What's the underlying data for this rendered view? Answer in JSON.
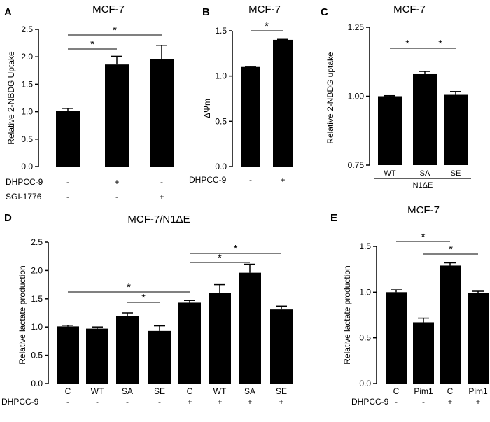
{
  "chart_data": [
    {
      "panel_label": "A",
      "type": "bar",
      "title": "MCF-7",
      "ylabel": "Relative 2-NBDG Uptake",
      "ylim": [
        0,
        2.5
      ],
      "yticks": [
        "0.0",
        "0.5",
        "1.0",
        "1.5",
        "2.0",
        "2.5"
      ],
      "values": [
        1.01,
        1.86,
        1.96
      ],
      "errors": [
        0.05,
        0.15,
        0.25
      ],
      "treatments": [
        {
          "name": "DHPCC-9",
          "marks": [
            "-",
            "+",
            "-"
          ]
        },
        {
          "name": "SGI-1776",
          "marks": [
            "-",
            "-",
            "+"
          ]
        }
      ],
      "significance": [
        {
          "from": 0,
          "to": 1,
          "label": "*"
        },
        {
          "from": 0,
          "to": 2,
          "label": "*"
        }
      ]
    },
    {
      "panel_label": "B",
      "type": "bar",
      "title": "MCF-7",
      "ylabel": "ΔΨm",
      "ylim": [
        0,
        1.5
      ],
      "yticks": [
        "0.0",
        "0.5",
        "1.0",
        "1.5"
      ],
      "values": [
        1.1,
        1.4
      ],
      "errors": [
        0.005,
        0.005
      ],
      "treatments": [
        {
          "name": "DHPCC-9",
          "marks": [
            "-",
            "+"
          ]
        }
      ],
      "significance": [
        {
          "from": 0,
          "to": 1,
          "label": "*"
        }
      ]
    },
    {
      "panel_label": "C",
      "type": "bar",
      "title": "MCF-7",
      "ylabel": "Relative 2-NBDG uptake",
      "ylim": [
        0.75,
        1.25
      ],
      "yticks": [
        "0.75",
        "1.00",
        "1.25"
      ],
      "categories": [
        "WT",
        "SA",
        "SE"
      ],
      "group_label": "N1ΔE",
      "values": [
        1.0,
        1.08,
        1.005
      ],
      "errors": [
        0.002,
        0.01,
        0.012
      ],
      "significance": [
        {
          "from": 0,
          "to": 1,
          "label": "*"
        },
        {
          "from": 1,
          "to": 2,
          "label": "*"
        }
      ]
    },
    {
      "panel_label": "D",
      "type": "bar",
      "title": "MCF-7/N1ΔE",
      "ylabel": "Relative lactate production",
      "ylim": [
        0,
        2.5
      ],
      "yticks": [
        "0.0",
        "0.5",
        "1.0",
        "1.5",
        "2.0",
        "2.5"
      ],
      "categories": [
        "C",
        "WT",
        "SA",
        "SE",
        "C",
        "WT",
        "SA",
        "SE"
      ],
      "values": [
        1.01,
        0.97,
        1.2,
        0.93,
        1.43,
        1.6,
        1.96,
        1.31
      ],
      "errors": [
        0.02,
        0.03,
        0.05,
        0.09,
        0.04,
        0.15,
        0.15,
        0.06
      ],
      "treatments": [
        {
          "name": "DHPCC-9",
          "marks": [
            "-",
            "-",
            "-",
            "-",
            "+",
            "+",
            "+",
            "+"
          ]
        }
      ],
      "significance": [
        {
          "from": 0,
          "to": 4,
          "label": "*"
        },
        {
          "from": 2,
          "to": 3,
          "label": "*"
        },
        {
          "from": 4,
          "to": 6,
          "label": "*"
        },
        {
          "from": 4,
          "to": 7,
          "label": "*"
        }
      ]
    },
    {
      "panel_label": "E",
      "type": "bar",
      "title": "MCF-7",
      "ylabel": "Relative lactate production",
      "ylim": [
        0,
        1.5
      ],
      "yticks": [
        "0.0",
        "0.5",
        "1.0",
        "1.5"
      ],
      "categories": [
        "C",
        "Pim1",
        "C",
        "Pim1"
      ],
      "values": [
        1.0,
        0.67,
        1.29,
        0.99
      ],
      "errors": [
        0.025,
        0.045,
        0.03,
        0.02
      ],
      "treatments": [
        {
          "name": "DHPCC-9",
          "marks": [
            "-",
            "-",
            "+",
            "+"
          ]
        }
      ],
      "significance": [
        {
          "from": 0,
          "to": 2,
          "label": "*"
        },
        {
          "from": 1,
          "to": 3,
          "label": "*"
        }
      ]
    }
  ]
}
